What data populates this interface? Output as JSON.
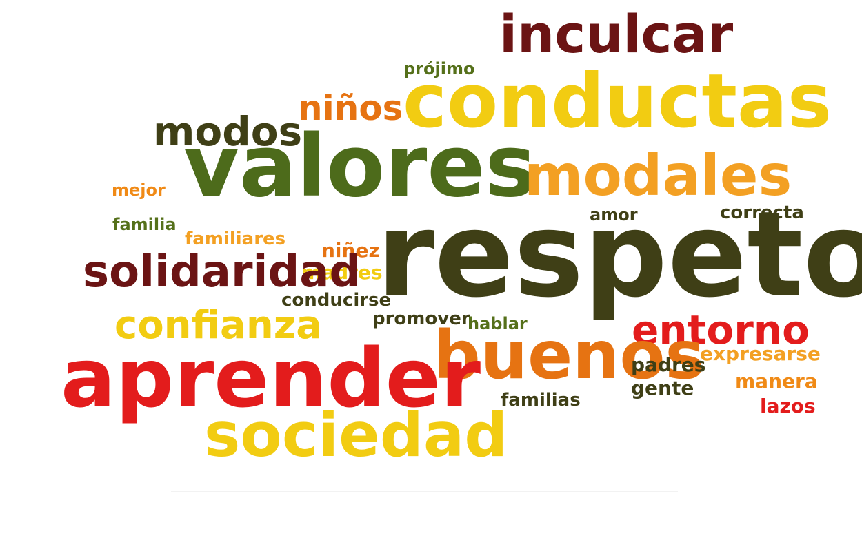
{
  "colors": {
    "dark_red": "#6b1414",
    "dark_olive": "#3f3f16",
    "olive": "#55701a",
    "green": "#4d6b1b",
    "yellow": "#f2cc12",
    "orange": "#f08a16",
    "light_orange": "#f3a023",
    "red": "#e31c1c",
    "burnt_orange": "#e67312"
  },
  "words": {
    "inculcar": "inculcar",
    "projimo": "prójimo",
    "ninos": "niños",
    "conductas": "conductas",
    "modos": "modos",
    "valores": "valores",
    "modales": "modales",
    "mejor": "mejor",
    "familia": "familia",
    "familiares": "familiares",
    "amor": "amor",
    "correcta": "correcta",
    "respeto": "respeto",
    "ninez": "niñez",
    "madres": "madres",
    "solidaridad": "solidaridad",
    "conducirse": "conducirse",
    "promover": "promover",
    "hablar": "hablar",
    "confianza": "confianza",
    "entorno": "entorno",
    "buenos": "buenos",
    "padres": "padres",
    "expresarse": "expresarse",
    "aprender": "aprender",
    "gente": "gente",
    "manera": "manera",
    "familias": "familias",
    "lazos": "lazos",
    "sociedad": "sociedad"
  }
}
